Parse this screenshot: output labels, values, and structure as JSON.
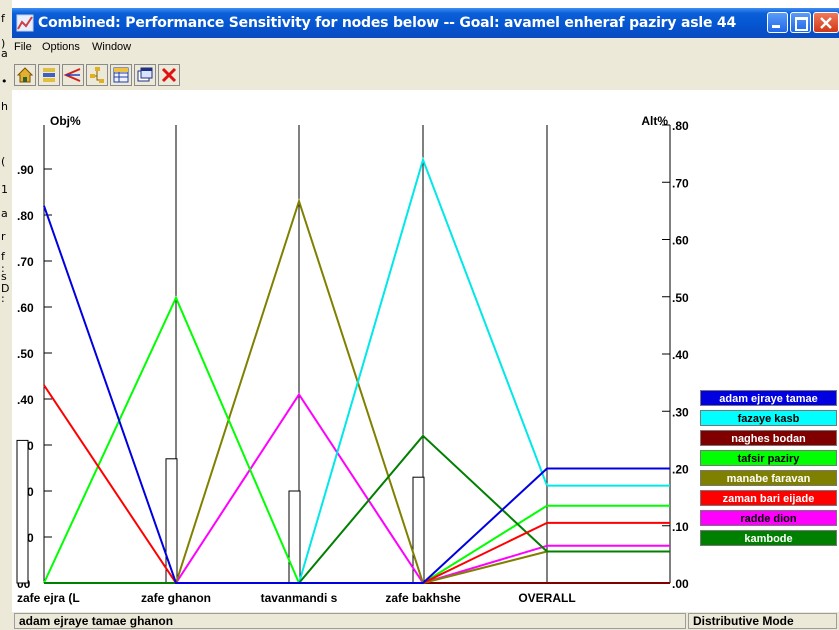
{
  "window": {
    "title": "Combined: Performance Sensitivity for nodes below -- Goal: avamel enheraf paziry asle 44"
  },
  "menu": [
    "File",
    "Options",
    "Window"
  ],
  "toolbar": {
    "buttons": [
      "home-icon",
      "sort-icon",
      "compare-icon",
      "tree-icon",
      "grid-icon",
      "windows-icon",
      "close-red-icon"
    ]
  },
  "background_glyphs": [
    "f",
    ")",
    "a",
    "•",
    "h",
    "(",
    "1",
    "a",
    "r",
    "f",
    ":",
    "s",
    "D",
    ":"
  ],
  "plot": {
    "left_axis_title": "Obj%",
    "right_axis_title": "Alt%",
    "left_ticks": [
      "00",
      ".10",
      ".20",
      ".30",
      ".40",
      ".50",
      ".60",
      ".70",
      ".80",
      ".90"
    ],
    "right_ticks": [
      ".00",
      ".10",
      ".20",
      ".30",
      ".40",
      ".50",
      ".60",
      ".70",
      ".80"
    ],
    "columns": [
      "zafe ejra (L",
      "zafe ghanon",
      "tavanmandi s",
      "zafe bakhshe",
      "OVERALL"
    ]
  },
  "chart_data": {
    "type": "line",
    "title": "",
    "x": [
      "zafe ejra (L",
      "zafe ghanon",
      "tavanmandi s",
      "zafe bakhshe"
    ],
    "objective_bars": {
      "axis": "Obj%",
      "values": [
        0.31,
        0.27,
        0.2,
        0.23
      ],
      "ylim": [
        0,
        1.0
      ]
    },
    "series": [
      {
        "name": "adam ejraye tamae ghanon",
        "color": "#0000e0",
        "values": [
          0.82,
          0.0,
          0.0,
          0.0
        ],
        "overall": 0.2
      },
      {
        "name": "fazaye kasb",
        "color": "#00e8e8",
        "values": [
          0.0,
          0.0,
          0.0,
          0.92
        ],
        "overall": 0.17
      },
      {
        "name": "naghes bodan",
        "color": "#800000",
        "values": [
          0.0,
          0.0,
          0.0,
          0.0
        ],
        "overall": 0.0
      },
      {
        "name": "tafsir paziry",
        "color": "#00ff00",
        "values": [
          0.0,
          0.62,
          0.0,
          0.0
        ],
        "overall": 0.135
      },
      {
        "name": "manabe faravan",
        "color": "#808000",
        "values": [
          0.0,
          0.0,
          0.83,
          0.0
        ],
        "overall": 0.055
      },
      {
        "name": "zaman bari eijade",
        "color": "#ff0000",
        "values": [
          0.43,
          0.0,
          0.0,
          0.0
        ],
        "overall": 0.105
      },
      {
        "name": "radde dion",
        "color": "#ff00ff",
        "values": [
          0.0,
          0.0,
          0.41,
          0.0
        ],
        "overall": 0.065
      },
      {
        "name": "kambode",
        "color": "#008000",
        "values": [
          0.0,
          0.0,
          0.0,
          0.32
        ],
        "overall": 0.055
      }
    ],
    "ylim_left": [
      0,
      1.0
    ],
    "ylim_right": [
      0,
      0.8
    ],
    "ylabel": "Obj%",
    "y2label": "Alt%"
  },
  "legend": [
    {
      "label": "adam ejraye tamae",
      "bg": "#0000e0",
      "fg": "#ffffff"
    },
    {
      "label": "fazaye kasb",
      "bg": "#00ffff",
      "fg": "#000000"
    },
    {
      "label": "naghes bodan",
      "bg": "#800000",
      "fg": "#ffffff"
    },
    {
      "label": "tafsir paziry",
      "bg": "#00ff00",
      "fg": "#000000"
    },
    {
      "label": "manabe faravan",
      "bg": "#808000",
      "fg": "#ffffff"
    },
    {
      "label": "zaman bari eijade",
      "bg": "#ff0000",
      "fg": "#ffffff"
    },
    {
      "label": "radde dion",
      "bg": "#ff00ff",
      "fg": "#000000"
    },
    {
      "label": "kambode",
      "bg": "#008000",
      "fg": "#ffffff"
    }
  ],
  "status": {
    "left": "adam ejraye tamae ghanon",
    "right": "Distributive Mode"
  },
  "colors": {
    "titlebar": "#0554d0",
    "window_bg": "#ece9d8",
    "plot_bg": "#ffffff"
  }
}
